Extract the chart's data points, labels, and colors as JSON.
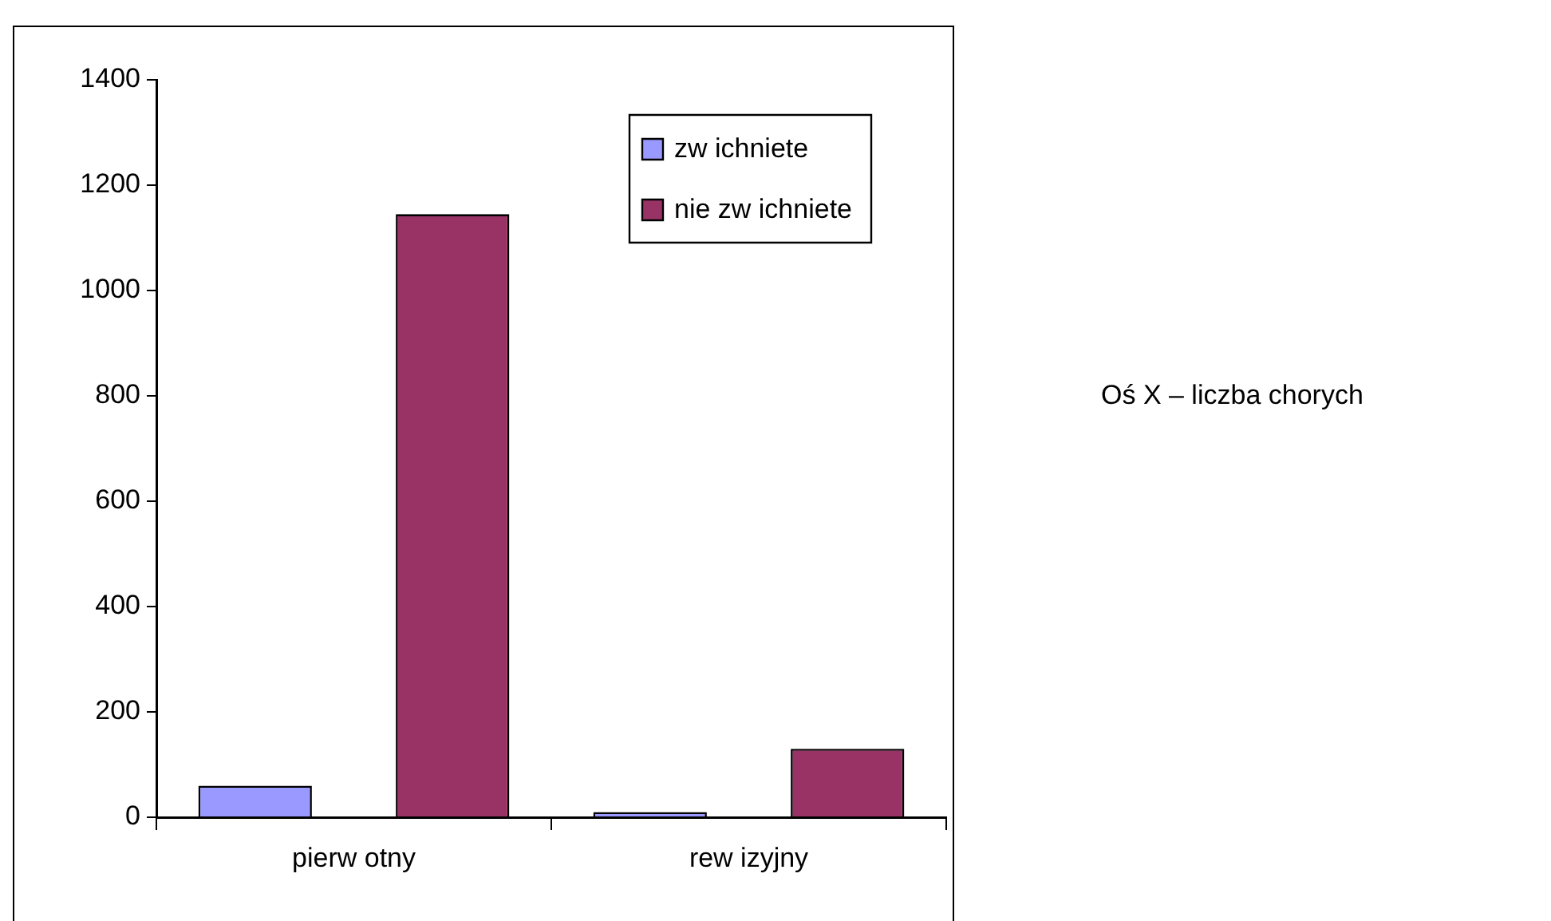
{
  "chart_data": {
    "type": "bar",
    "categories": [
      "pierw otny",
      "rew izyjny"
    ],
    "series": [
      {
        "name": "zw ichniete",
        "color": "#9999ff",
        "values": [
          60,
          10
        ]
      },
      {
        "name": "nie zw ichniete",
        "color": "#993366",
        "values": [
          1145,
          130
        ]
      }
    ],
    "ylim": [
      0,
      1400
    ],
    "yticks": [
      0,
      200,
      400,
      600,
      800,
      1000,
      1200,
      1400
    ],
    "grid": false,
    "legend": "top right",
    "annotations": [
      "Oś X – liczba chorych"
    ]
  }
}
